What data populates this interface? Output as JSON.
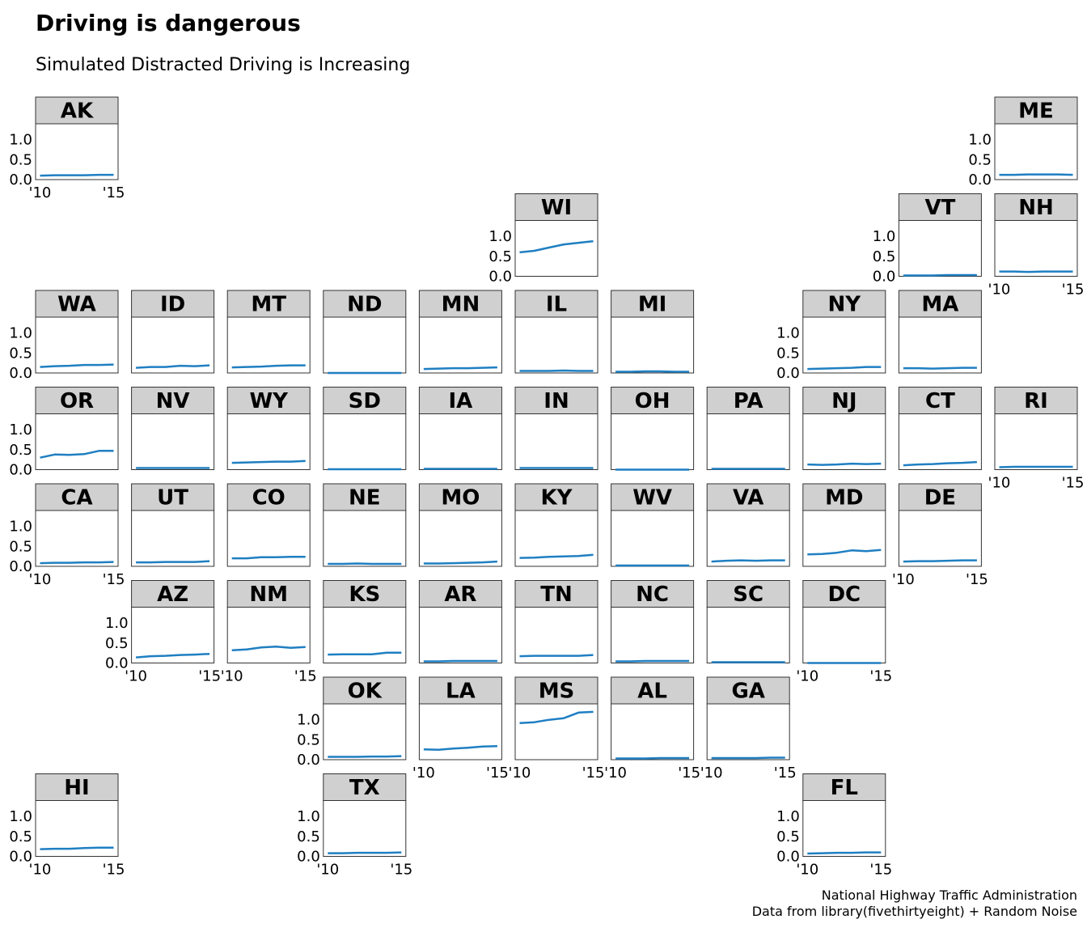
{
  "title": "Driving is dangerous",
  "subtitle": "Simulated Distracted Driving is Increasing",
  "caption": {
    "line1": "National Highway Traffic Administration",
    "line2": "Data from library(fivethirtyeight) + Random Noise"
  },
  "colors": {
    "line": "#1f7fc2",
    "strip": "#d0d0d0",
    "border": "#333333"
  },
  "chart_data": {
    "type": "line",
    "layout": "geofacet-us-grid",
    "x": [
      2010,
      2011,
      2012,
      2013,
      2014,
      2015
    ],
    "xticks": [
      {
        "value": 2010,
        "label": "'10"
      },
      {
        "value": 2015,
        "label": "'15"
      }
    ],
    "yticks": [
      {
        "value": 0.0,
        "label": "0.0"
      },
      {
        "value": 0.5,
        "label": "0.5"
      },
      {
        "value": 1.0,
        "label": "1.0"
      }
    ],
    "xlim": [
      2009.7,
      2015.3
    ],
    "ylim": [
      0,
      1.4
    ],
    "panels": [
      {
        "state": "AK",
        "row": 1,
        "col": 1,
        "values": [
          0.1,
          0.11,
          0.11,
          0.11,
          0.12,
          0.12
        ]
      },
      {
        "state": "ME",
        "row": 1,
        "col": 11,
        "values": [
          0.12,
          0.12,
          0.13,
          0.13,
          0.13,
          0.12
        ]
      },
      {
        "state": "WI",
        "row": 2,
        "col": 6,
        "values": [
          0.6,
          0.64,
          0.72,
          0.8,
          0.84,
          0.88
        ]
      },
      {
        "state": "VT",
        "row": 2,
        "col": 10,
        "values": [
          0.02,
          0.02,
          0.02,
          0.03,
          0.03,
          0.03
        ]
      },
      {
        "state": "NH",
        "row": 2,
        "col": 11,
        "values": [
          0.12,
          0.12,
          0.11,
          0.12,
          0.12,
          0.12
        ]
      },
      {
        "state": "WA",
        "row": 3,
        "col": 1,
        "values": [
          0.15,
          0.17,
          0.18,
          0.2,
          0.2,
          0.21
        ]
      },
      {
        "state": "ID",
        "row": 3,
        "col": 2,
        "values": [
          0.13,
          0.15,
          0.15,
          0.18,
          0.17,
          0.19
        ]
      },
      {
        "state": "MT",
        "row": 3,
        "col": 3,
        "values": [
          0.14,
          0.15,
          0.16,
          0.18,
          0.19,
          0.19
        ]
      },
      {
        "state": "ND",
        "row": 3,
        "col": 4,
        "values": [
          0.0,
          0.0,
          0.0,
          0.0,
          0.0,
          0.0
        ]
      },
      {
        "state": "MN",
        "row": 3,
        "col": 5,
        "values": [
          0.1,
          0.11,
          0.12,
          0.12,
          0.13,
          0.14
        ]
      },
      {
        "state": "IL",
        "row": 3,
        "col": 6,
        "values": [
          0.05,
          0.05,
          0.05,
          0.06,
          0.05,
          0.05
        ]
      },
      {
        "state": "MI",
        "row": 3,
        "col": 7,
        "values": [
          0.03,
          0.03,
          0.04,
          0.04,
          0.03,
          0.03
        ]
      },
      {
        "state": "NY",
        "row": 3,
        "col": 9,
        "values": [
          0.1,
          0.11,
          0.12,
          0.13,
          0.15,
          0.15
        ]
      },
      {
        "state": "MA",
        "row": 3,
        "col": 10,
        "values": [
          0.12,
          0.12,
          0.11,
          0.12,
          0.13,
          0.13
        ]
      },
      {
        "state": "OR",
        "row": 4,
        "col": 1,
        "values": [
          0.3,
          0.38,
          0.37,
          0.39,
          0.47,
          0.47
        ]
      },
      {
        "state": "NV",
        "row": 4,
        "col": 2,
        "values": [
          0.04,
          0.04,
          0.04,
          0.04,
          0.04,
          0.04
        ]
      },
      {
        "state": "WY",
        "row": 4,
        "col": 3,
        "values": [
          0.17,
          0.18,
          0.19,
          0.2,
          0.2,
          0.22
        ]
      },
      {
        "state": "SD",
        "row": 4,
        "col": 4,
        "values": [
          0.01,
          0.01,
          0.01,
          0.01,
          0.01,
          0.01
        ]
      },
      {
        "state": "IA",
        "row": 4,
        "col": 5,
        "values": [
          0.02,
          0.02,
          0.02,
          0.02,
          0.02,
          0.02
        ]
      },
      {
        "state": "IN",
        "row": 4,
        "col": 6,
        "values": [
          0.04,
          0.04,
          0.04,
          0.04,
          0.04,
          0.04
        ]
      },
      {
        "state": "OH",
        "row": 4,
        "col": 7,
        "values": [
          0.0,
          0.0,
          0.0,
          0.0,
          0.0,
          0.0
        ]
      },
      {
        "state": "PA",
        "row": 4,
        "col": 8,
        "values": [
          0.02,
          0.02,
          0.02,
          0.02,
          0.02,
          0.02
        ]
      },
      {
        "state": "NJ",
        "row": 4,
        "col": 9,
        "values": [
          0.13,
          0.12,
          0.13,
          0.15,
          0.14,
          0.15
        ]
      },
      {
        "state": "CT",
        "row": 4,
        "col": 10,
        "values": [
          0.11,
          0.13,
          0.14,
          0.16,
          0.17,
          0.19
        ]
      },
      {
        "state": "RI",
        "row": 4,
        "col": 11,
        "values": [
          0.06,
          0.07,
          0.07,
          0.07,
          0.07,
          0.07
        ]
      },
      {
        "state": "CA",
        "row": 5,
        "col": 1,
        "values": [
          0.08,
          0.09,
          0.09,
          0.1,
          0.1,
          0.11
        ]
      },
      {
        "state": "UT",
        "row": 5,
        "col": 2,
        "values": [
          0.1,
          0.1,
          0.11,
          0.11,
          0.11,
          0.13
        ]
      },
      {
        "state": "CO",
        "row": 5,
        "col": 3,
        "values": [
          0.2,
          0.2,
          0.23,
          0.23,
          0.24,
          0.24
        ]
      },
      {
        "state": "NE",
        "row": 5,
        "col": 4,
        "values": [
          0.06,
          0.06,
          0.07,
          0.06,
          0.06,
          0.06
        ]
      },
      {
        "state": "MO",
        "row": 5,
        "col": 5,
        "values": [
          0.07,
          0.07,
          0.08,
          0.09,
          0.1,
          0.12
        ]
      },
      {
        "state": "KY",
        "row": 5,
        "col": 6,
        "values": [
          0.21,
          0.22,
          0.24,
          0.25,
          0.26,
          0.29
        ]
      },
      {
        "state": "WV",
        "row": 5,
        "col": 7,
        "values": [
          0.02,
          0.02,
          0.02,
          0.02,
          0.02,
          0.02
        ]
      },
      {
        "state": "VA",
        "row": 5,
        "col": 8,
        "values": [
          0.12,
          0.14,
          0.15,
          0.14,
          0.15,
          0.15
        ]
      },
      {
        "state": "MD",
        "row": 5,
        "col": 9,
        "values": [
          0.3,
          0.31,
          0.34,
          0.4,
          0.38,
          0.41
        ]
      },
      {
        "state": "DE",
        "row": 5,
        "col": 10,
        "values": [
          0.12,
          0.13,
          0.13,
          0.14,
          0.15,
          0.15
        ]
      },
      {
        "state": "AZ",
        "row": 6,
        "col": 2,
        "values": [
          0.14,
          0.17,
          0.18,
          0.2,
          0.21,
          0.23
        ]
      },
      {
        "state": "NM",
        "row": 6,
        "col": 3,
        "values": [
          0.32,
          0.34,
          0.39,
          0.41,
          0.38,
          0.4
        ]
      },
      {
        "state": "KS",
        "row": 6,
        "col": 4,
        "values": [
          0.21,
          0.22,
          0.22,
          0.22,
          0.26,
          0.26
        ]
      },
      {
        "state": "AR",
        "row": 6,
        "col": 5,
        "values": [
          0.04,
          0.04,
          0.05,
          0.05,
          0.05,
          0.05
        ]
      },
      {
        "state": "TN",
        "row": 6,
        "col": 6,
        "values": [
          0.17,
          0.18,
          0.18,
          0.18,
          0.18,
          0.2
        ]
      },
      {
        "state": "NC",
        "row": 6,
        "col": 7,
        "values": [
          0.04,
          0.04,
          0.05,
          0.05,
          0.05,
          0.05
        ]
      },
      {
        "state": "SC",
        "row": 6,
        "col": 8,
        "values": [
          0.02,
          0.02,
          0.02,
          0.02,
          0.02,
          0.02
        ]
      },
      {
        "state": "DC",
        "row": 6,
        "col": 9,
        "values": [
          0.0,
          0.0,
          0.0,
          0.0,
          0.0,
          0.0
        ]
      },
      {
        "state": "OK",
        "row": 7,
        "col": 4,
        "values": [
          0.07,
          0.07,
          0.07,
          0.08,
          0.08,
          0.09
        ]
      },
      {
        "state": "LA",
        "row": 7,
        "col": 5,
        "values": [
          0.26,
          0.25,
          0.28,
          0.3,
          0.33,
          0.34
        ]
      },
      {
        "state": "MS",
        "row": 7,
        "col": 6,
        "values": [
          0.92,
          0.94,
          1.0,
          1.04,
          1.18,
          1.2
        ]
      },
      {
        "state": "AL",
        "row": 7,
        "col": 7,
        "values": [
          0.03,
          0.03,
          0.03,
          0.04,
          0.04,
          0.04
        ]
      },
      {
        "state": "GA",
        "row": 7,
        "col": 8,
        "values": [
          0.04,
          0.04,
          0.04,
          0.04,
          0.05,
          0.05
        ]
      },
      {
        "state": "HI",
        "row": 8,
        "col": 1,
        "values": [
          0.18,
          0.19,
          0.19,
          0.21,
          0.22,
          0.22
        ]
      },
      {
        "state": "TX",
        "row": 8,
        "col": 4,
        "values": [
          0.08,
          0.08,
          0.09,
          0.09,
          0.09,
          0.1
        ]
      },
      {
        "state": "FL",
        "row": 8,
        "col": 9,
        "values": [
          0.07,
          0.08,
          0.09,
          0.09,
          0.1,
          0.1
        ]
      }
    ]
  }
}
